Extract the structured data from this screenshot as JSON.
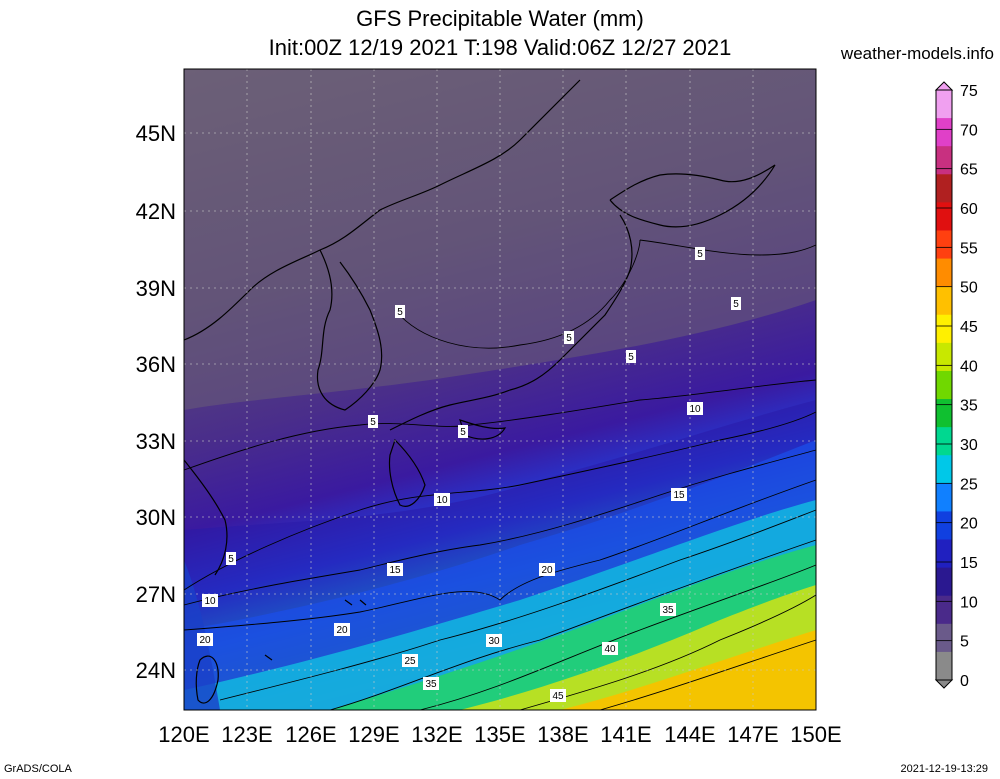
{
  "header": {
    "title_line1": "GFS Precipitable Water (mm)",
    "title_line2": "Init:00Z 12/19 2021 T:198 Valid:06Z 12/27 2021",
    "site": "weather-models.info"
  },
  "footer": {
    "left": "GrADS/COLA",
    "right": "2021-12-19-13:29"
  },
  "map": {
    "lat_labels": [
      "45N",
      "42N",
      "39N",
      "36N",
      "33N",
      "30N",
      "27N",
      "24N"
    ],
    "lon_labels": [
      "120E",
      "123E",
      "126E",
      "129E",
      "132E",
      "135E",
      "138E",
      "141E",
      "144E",
      "147E",
      "150E"
    ],
    "contour_labels": [
      "5",
      "5",
      "5",
      "5",
      "5",
      "5",
      "5",
      "5",
      "10",
      "10",
      "10",
      "15",
      "15",
      "20",
      "20",
      "20",
      "25",
      "30",
      "35",
      "35",
      "40",
      "45",
      "5"
    ]
  },
  "colorbar": {
    "labels": [
      "75",
      "70",
      "65",
      "60",
      "55",
      "50",
      "45",
      "40",
      "35",
      "30",
      "25",
      "20",
      "15",
      "10",
      "5",
      "0"
    ],
    "colors": [
      "#f0a0f0",
      "#e040c8",
      "#c83080",
      "#b02020",
      "#e01010",
      "#ff4010",
      "#ff8c00",
      "#ffc000",
      "#fff000",
      "#c8e800",
      "#70d800",
      "#10c030",
      "#00d890",
      "#00c8e8",
      "#1080ff",
      "#1040e0",
      "#2020c0",
      "#2a1890",
      "#4a2a8a",
      "#6a5a8a",
      "#8a8a8a"
    ]
  }
}
